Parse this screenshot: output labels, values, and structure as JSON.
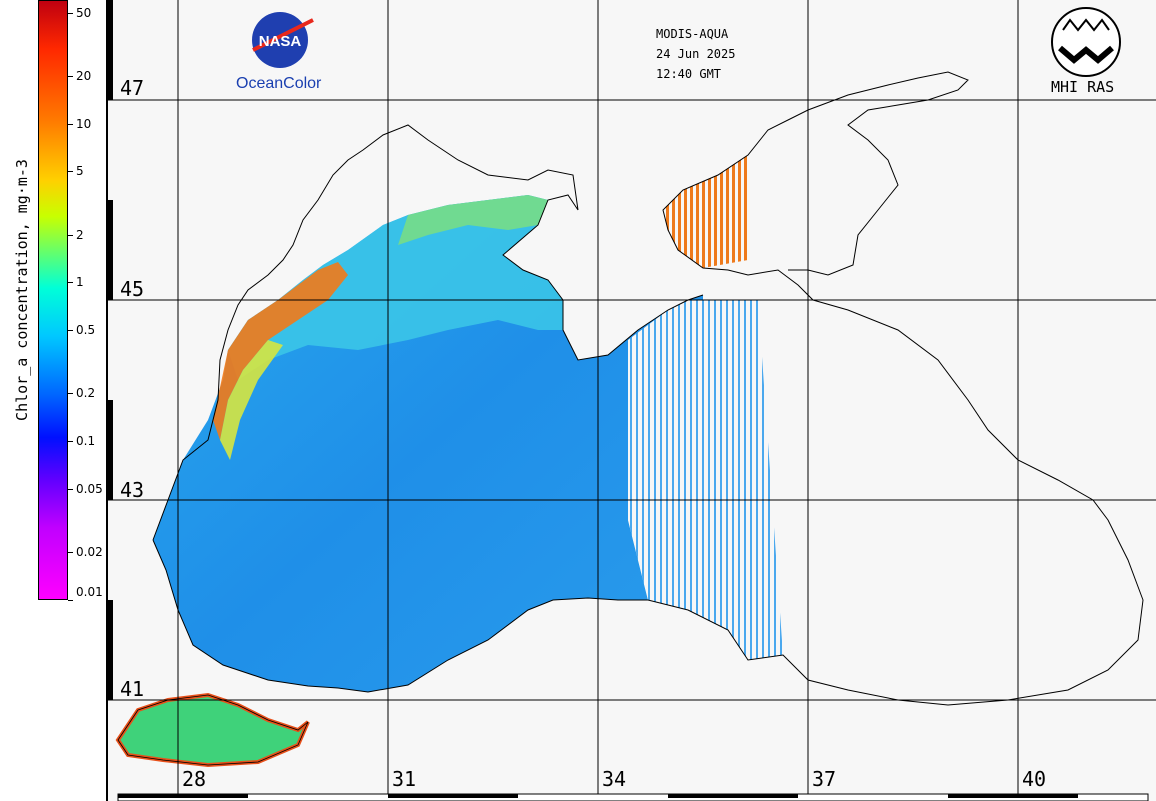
{
  "colorbar": {
    "title": "Chlor_a concentration, mg·m-3",
    "ticks": [
      {
        "label": "50",
        "value": 50
      },
      {
        "label": "20",
        "value": 20
      },
      {
        "label": "10",
        "value": 10
      },
      {
        "label": "5",
        "value": 5
      },
      {
        "label": "2",
        "value": 2
      },
      {
        "label": "1",
        "value": 1
      },
      {
        "label": "0.5",
        "value": 0.5
      },
      {
        "label": "0.2",
        "value": 0.2
      },
      {
        "label": "0.1",
        "value": 0.1
      },
      {
        "label": "0.05",
        "value": 0.05
      },
      {
        "label": "0.02",
        "value": 0.02
      },
      {
        "label": "0.01",
        "value": 0.01
      }
    ],
    "scale": "log",
    "range": [
      0.01,
      60
    ]
  },
  "header": {
    "satellite": "MODIS-AQUA",
    "date": "24 Jun 2025",
    "time": "12:40 GMT"
  },
  "logos": {
    "nasa_badge": "NASA",
    "nasa_caption": "OceanColor",
    "mhi_caption": "MHI RAS"
  },
  "grid": {
    "latitudes": [
      "47",
      "45",
      "43",
      "41"
    ],
    "longitudes": [
      "28",
      "31",
      "34",
      "37",
      "40"
    ]
  },
  "colors": {
    "sea_low": "#1f8fe8",
    "sea_mid": "#36c2f0",
    "coastal_high": "#f06a10",
    "land": "#f7f7f7"
  }
}
